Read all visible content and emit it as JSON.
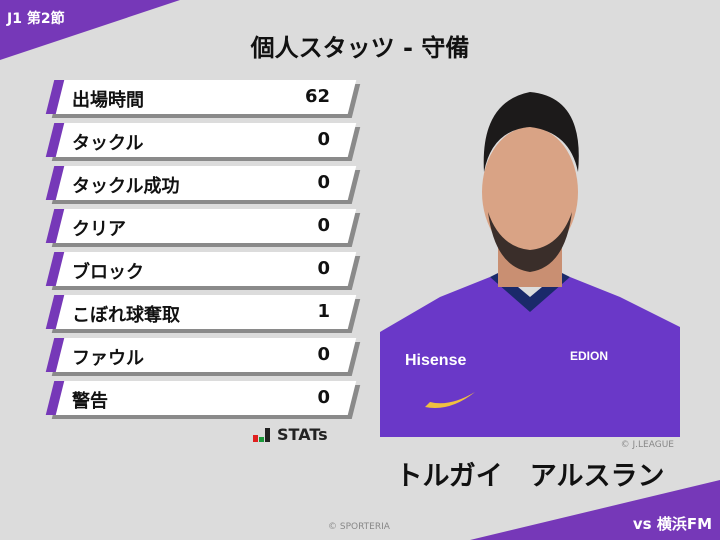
{
  "header": {
    "round": "J1 第2節",
    "title": "個人スタッツ - 守備",
    "opponent": "vs 横浜FM"
  },
  "stats": [
    {
      "label": "出場時間",
      "value": "62"
    },
    {
      "label": "タックル",
      "value": "0"
    },
    {
      "label": "タックル成功",
      "value": "0"
    },
    {
      "label": "クリア",
      "value": "0"
    },
    {
      "label": "ブロック",
      "value": "0"
    },
    {
      "label": "こぼれ球奪取",
      "value": "1"
    },
    {
      "label": "ファウル",
      "value": "0"
    },
    {
      "label": "警告",
      "value": "0"
    }
  ],
  "logo": {
    "text": "STATs"
  },
  "player": {
    "name": "トルガイ　アルスラン",
    "photo_credit": "© J.LEAGUE",
    "sponsor": "Hisense",
    "sponsor2": "EDION"
  },
  "footer": {
    "credit": "© SPORTERIA"
  },
  "colors": {
    "accent": "#7638b8",
    "background": "#dcdcdc"
  }
}
